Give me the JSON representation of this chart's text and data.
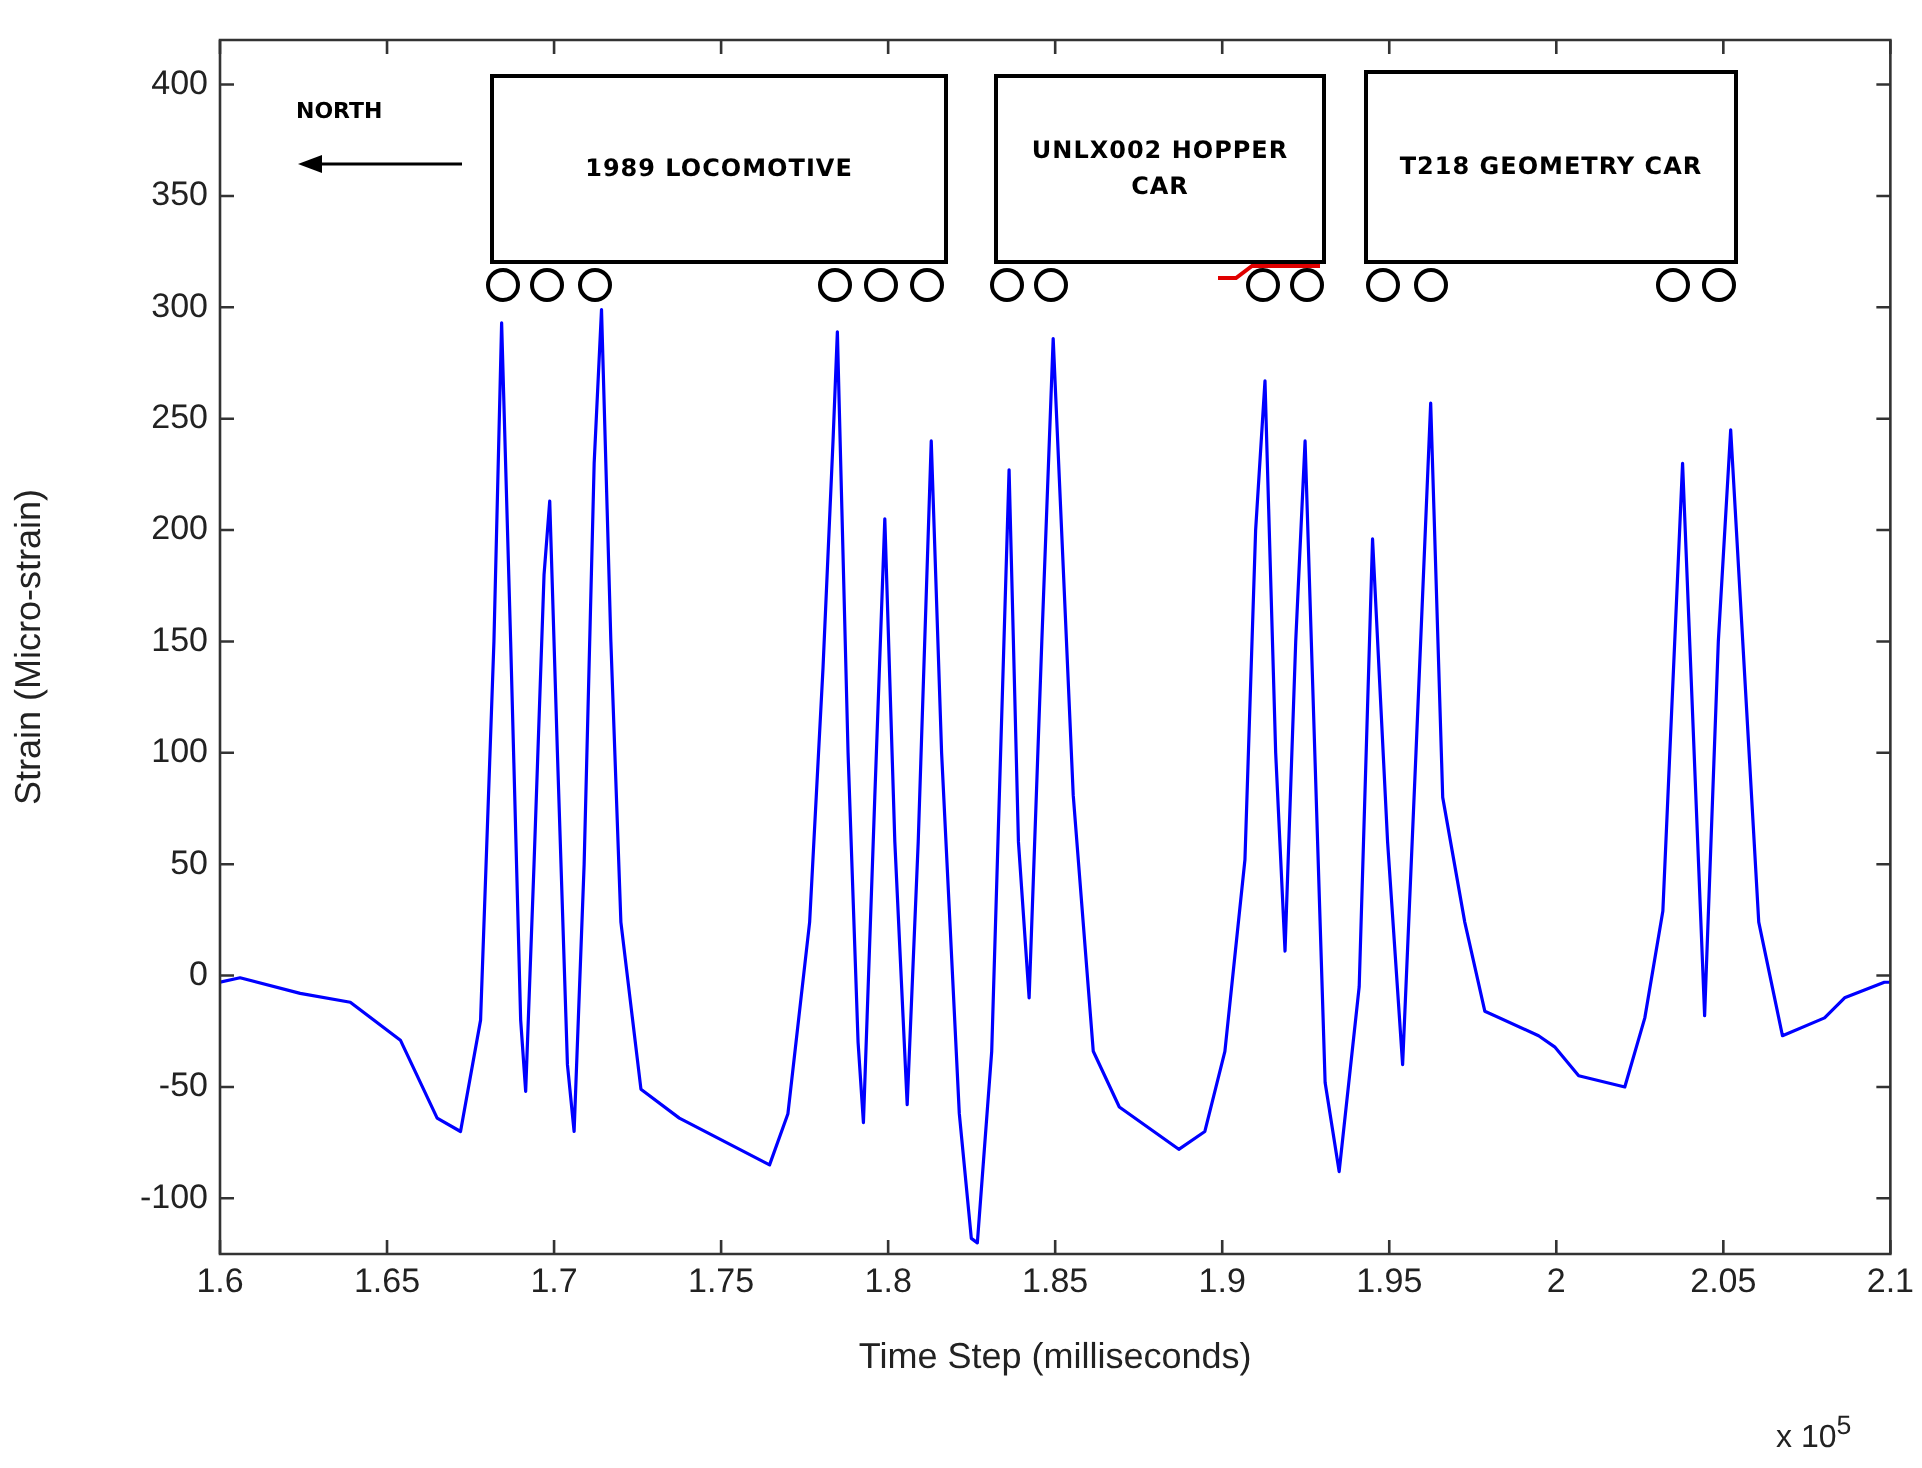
{
  "chart_data": {
    "type": "line",
    "xlabel": "Time Step (milliseconds)",
    "ylabel": "Strain (Micro-strain)",
    "xlim": [
      1.6,
      2.1
    ],
    "xticks": [
      1.6,
      1.65,
      1.7,
      1.75,
      1.8,
      1.85,
      1.9,
      1.95,
      2,
      2.05,
      2.1
    ],
    "ylim": [
      -125,
      420
    ],
    "yticks": [
      -100,
      -50,
      0,
      50,
      100,
      150,
      200,
      250,
      300,
      350,
      400
    ],
    "grid": false,
    "annotations": [
      "NORTH",
      "1989 LOCOMOTIVE",
      "UNLX002 HOPPER CAR",
      "T218 GEOMETRY CAR",
      "x 10$^{5}$"
    ],
    "series": [
      {
        "color": "#0000ff",
        "x": [
          1.6,
          1.606,
          1.624,
          1.639,
          1.654,
          1.665,
          1.672,
          1.678,
          1.682,
          1.6843,
          1.687,
          1.69,
          1.6915,
          1.694,
          1.697,
          1.6987,
          1.701,
          1.704,
          1.706,
          1.709,
          1.712,
          1.7142,
          1.717,
          1.72,
          1.726,
          1.7375,
          1.7645,
          1.77,
          1.7765,
          1.7805,
          1.7835,
          1.7848,
          1.788,
          1.791,
          1.7926,
          1.796,
          1.799,
          1.802,
          1.8057,
          1.809,
          1.8129,
          1.816,
          1.8213,
          1.8249,
          1.8267,
          1.831,
          1.8362,
          1.839,
          1.8422,
          1.846,
          1.8494,
          1.8554,
          1.8614,
          1.8692,
          1.887,
          1.8948,
          1.9008,
          1.9068,
          1.91,
          1.9128,
          1.916,
          1.9188,
          1.922,
          1.9248,
          1.9308,
          1.935,
          1.941,
          1.945,
          1.9495,
          1.954,
          1.958,
          1.9624,
          1.966,
          1.9726,
          1.9786,
          1.9947,
          1.9995,
          2.0067,
          2.0205,
          2.0265,
          2.0319,
          2.0378,
          2.0444,
          2.0485,
          2.0522,
          2.0606,
          2.0677,
          2.0803,
          2.0863,
          2.0982,
          2.1
        ],
        "values": [
          -3,
          -1,
          -8,
          -12,
          -29,
          -64,
          -70,
          -20,
          150,
          293,
          150,
          -20,
          -52,
          50,
          180,
          213,
          100,
          -40,
          -70,
          50,
          230,
          299,
          150,
          24,
          -51,
          -64,
          -85,
          -62,
          24,
          138,
          240,
          289,
          100,
          -30,
          -66,
          80,
          205,
          60,
          -58,
          60,
          240,
          100,
          -62,
          -118,
          -120,
          -34,
          227,
          60,
          -10,
          150,
          286,
          81,
          -34,
          -59,
          -78,
          -70,
          -34,
          52,
          200,
          267,
          100,
          11,
          150,
          240,
          -48,
          -88,
          -5,
          196,
          60,
          -40,
          100,
          257,
          80,
          24,
          -16,
          -27,
          -32,
          -45,
          -50,
          -19,
          29,
          230,
          -18,
          150,
          245,
          24,
          -27,
          -19,
          -10,
          -3,
          -3
        ]
      }
    ]
  }
}
